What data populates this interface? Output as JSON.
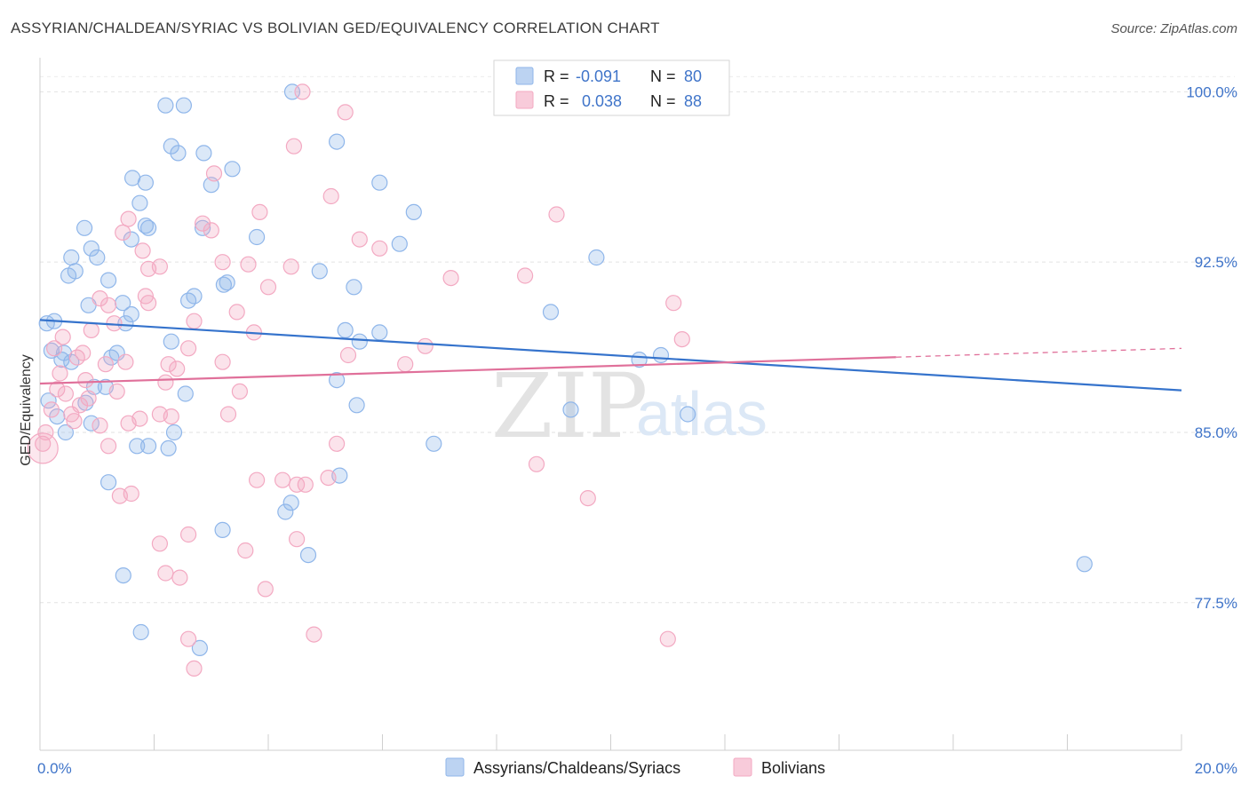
{
  "title": "ASSYRIAN/CHALDEAN/SYRIAC VS BOLIVIAN GED/EQUIVALENCY CORRELATION CHART",
  "source": "Source: ZipAtlas.com",
  "watermark": {
    "zip": "ZIP",
    "atlas": "atlas"
  },
  "chart_data": {
    "type": "scatter",
    "xlabel": "",
    "ylabel": "GED/Equivalency",
    "xlim": [
      0.0,
      20.0
    ],
    "ylim": [
      71.0,
      101.5
    ],
    "x_tick_labels": [
      {
        "value": 0.0,
        "label": "0.0%"
      },
      {
        "value": 20.0,
        "label": "20.0%"
      }
    ],
    "y_tick_labels": [
      {
        "value": 100.0,
        "label": "100.0%"
      },
      {
        "value": 92.5,
        "label": "92.5%"
      },
      {
        "value": 85.0,
        "label": "85.0%"
      },
      {
        "value": 77.5,
        "label": "77.5%"
      }
    ],
    "grid": "horizontal-dashed",
    "legend_placement": "bottom-center",
    "stats_box": {
      "rows": [
        {
          "r_label": "R =",
          "r_value": "-0.091",
          "n_label": "N =",
          "n_value": "80",
          "color": "#8fb6ea"
        },
        {
          "r_label": "R =",
          "r_value": "0.038",
          "n_label": "N =",
          "n_value": "88",
          "color": "#f3a9c2"
        }
      ]
    },
    "series": [
      {
        "name": "Assyrians/Chaldeans/Syriacs",
        "color": "#8fb6ea",
        "line_color": "#3573cc",
        "trend": {
          "x0": 0.0,
          "y0": 89.95,
          "x1": 20.0,
          "y1": 86.85,
          "dash_from": null
        },
        "points": [
          [
            0.12,
            89.8
          ],
          [
            0.25,
            89.9
          ],
          [
            0.2,
            88.6
          ],
          [
            0.42,
            88.5
          ],
          [
            0.38,
            88.2
          ],
          [
            0.55,
            88.1
          ],
          [
            0.5,
            91.9
          ],
          [
            0.62,
            92.1
          ],
          [
            0.55,
            92.7
          ],
          [
            0.78,
            94.0
          ],
          [
            0.85,
            90.6
          ],
          [
            0.9,
            93.1
          ],
          [
            1.0,
            92.7
          ],
          [
            1.2,
            91.7
          ],
          [
            1.45,
            90.7
          ],
          [
            1.6,
            90.2
          ],
          [
            1.5,
            89.8
          ],
          [
            1.35,
            88.5
          ],
          [
            1.6,
            93.5
          ],
          [
            1.85,
            94.1
          ],
          [
            1.9,
            94.0
          ],
          [
            1.75,
            95.1
          ],
          [
            1.85,
            96.0
          ],
          [
            1.62,
            96.2
          ],
          [
            2.2,
            99.4
          ],
          [
            2.52,
            99.4
          ],
          [
            2.3,
            97.6
          ],
          [
            2.42,
            97.3
          ],
          [
            2.87,
            97.3
          ],
          [
            3.0,
            95.9
          ],
          [
            3.37,
            96.6
          ],
          [
            2.85,
            94.0
          ],
          [
            2.7,
            91.0
          ],
          [
            3.22,
            91.5
          ],
          [
            3.28,
            91.6
          ],
          [
            3.8,
            93.6
          ],
          [
            4.42,
            100.0
          ],
          [
            5.2,
            97.8
          ],
          [
            4.9,
            92.1
          ],
          [
            5.5,
            91.4
          ],
          [
            5.35,
            89.5
          ],
          [
            5.6,
            89.0
          ],
          [
            5.95,
            89.4
          ],
          [
            5.95,
            96.0
          ],
          [
            6.3,
            93.3
          ],
          [
            6.55,
            94.7
          ],
          [
            2.3,
            89.0
          ],
          [
            2.6,
            90.8
          ],
          [
            1.25,
            88.3
          ],
          [
            0.95,
            87.0
          ],
          [
            1.15,
            87.0
          ],
          [
            0.8,
            86.3
          ],
          [
            0.15,
            86.4
          ],
          [
            0.3,
            85.7
          ],
          [
            0.45,
            85.0
          ],
          [
            0.9,
            85.4
          ],
          [
            1.7,
            84.4
          ],
          [
            1.9,
            84.4
          ],
          [
            2.25,
            84.3
          ],
          [
            2.35,
            85.0
          ],
          [
            2.55,
            86.7
          ],
          [
            5.2,
            87.3
          ],
          [
            5.55,
            86.2
          ],
          [
            6.9,
            84.5
          ],
          [
            8.95,
            90.3
          ],
          [
            9.3,
            86.0
          ],
          [
            9.75,
            92.7
          ],
          [
            10.5,
            88.2
          ],
          [
            10.88,
            88.4
          ],
          [
            11.35,
            85.8
          ],
          [
            5.25,
            83.1
          ],
          [
            4.4,
            81.9
          ],
          [
            4.3,
            81.5
          ],
          [
            4.7,
            79.6
          ],
          [
            3.2,
            80.7
          ],
          [
            1.2,
            82.8
          ],
          [
            1.46,
            78.7
          ],
          [
            1.77,
            76.2
          ],
          [
            2.8,
            75.5
          ],
          [
            18.3,
            79.2
          ]
        ]
      },
      {
        "name": "Bolivians",
        "color": "#f3a9c2",
        "line_color": "#e0709a",
        "trend": {
          "x0": 0.0,
          "y0": 87.15,
          "x1": 20.0,
          "y1": 88.7,
          "dash_from": 15.0
        },
        "points": [
          [
            0.05,
            84.5
          ],
          [
            0.1,
            85.0
          ],
          [
            0.2,
            86.0
          ],
          [
            0.3,
            86.9
          ],
          [
            0.35,
            87.6
          ],
          [
            0.45,
            86.7
          ],
          [
            0.55,
            85.8
          ],
          [
            0.65,
            88.3
          ],
          [
            0.75,
            88.5
          ],
          [
            0.8,
            87.3
          ],
          [
            0.9,
            89.5
          ],
          [
            1.05,
            90.9
          ],
          [
            1.15,
            88.0
          ],
          [
            1.2,
            90.6
          ],
          [
            1.3,
            89.8
          ],
          [
            1.5,
            88.1
          ],
          [
            1.55,
            94.4
          ],
          [
            1.45,
            93.8
          ],
          [
            1.8,
            93.0
          ],
          [
            1.9,
            92.2
          ],
          [
            2.1,
            92.3
          ],
          [
            1.9,
            90.7
          ],
          [
            1.85,
            91.0
          ],
          [
            2.2,
            87.2
          ],
          [
            2.25,
            88.0
          ],
          [
            2.4,
            87.8
          ],
          [
            2.3,
            85.7
          ],
          [
            2.1,
            85.8
          ],
          [
            2.6,
            88.7
          ],
          [
            2.7,
            89.9
          ],
          [
            2.85,
            94.2
          ],
          [
            3.0,
            93.9
          ],
          [
            3.05,
            96.4
          ],
          [
            3.2,
            92.5
          ],
          [
            3.45,
            90.3
          ],
          [
            3.65,
            92.4
          ],
          [
            3.75,
            89.4
          ],
          [
            3.85,
            94.7
          ],
          [
            4.0,
            91.4
          ],
          [
            4.4,
            92.3
          ],
          [
            4.45,
            97.6
          ],
          [
            4.6,
            100.0
          ],
          [
            5.1,
            95.4
          ],
          [
            5.35,
            99.1
          ],
          [
            5.6,
            93.5
          ],
          [
            5.95,
            93.1
          ],
          [
            6.4,
            88.0
          ],
          [
            6.75,
            88.8
          ],
          [
            7.2,
            91.8
          ],
          [
            8.5,
            91.9
          ],
          [
            9.05,
            94.6
          ],
          [
            11.1,
            90.7
          ],
          [
            11.25,
            89.1
          ],
          [
            5.4,
            88.4
          ],
          [
            5.2,
            84.5
          ],
          [
            5.05,
            83.0
          ],
          [
            4.65,
            82.7
          ],
          [
            4.5,
            82.7
          ],
          [
            4.25,
            82.9
          ],
          [
            3.8,
            82.9
          ],
          [
            3.2,
            88.1
          ],
          [
            3.5,
            86.8
          ],
          [
            3.3,
            85.8
          ],
          [
            2.6,
            80.5
          ],
          [
            2.1,
            80.1
          ],
          [
            2.2,
            78.8
          ],
          [
            2.45,
            78.6
          ],
          [
            3.6,
            79.8
          ],
          [
            3.95,
            78.1
          ],
          [
            4.5,
            80.3
          ],
          [
            4.8,
            76.1
          ],
          [
            2.6,
            75.9
          ],
          [
            2.7,
            74.6
          ],
          [
            1.6,
            82.3
          ],
          [
            1.4,
            82.2
          ],
          [
            1.2,
            84.4
          ],
          [
            1.05,
            85.3
          ],
          [
            0.7,
            86.2
          ],
          [
            0.85,
            86.5
          ],
          [
            1.35,
            86.8
          ],
          [
            1.55,
            85.4
          ],
          [
            1.75,
            85.6
          ],
          [
            8.7,
            83.6
          ],
          [
            9.6,
            82.1
          ],
          [
            11.0,
            75.9
          ],
          [
            0.25,
            88.7
          ],
          [
            0.4,
            89.2
          ],
          [
            0.6,
            85.5
          ]
        ]
      }
    ]
  }
}
